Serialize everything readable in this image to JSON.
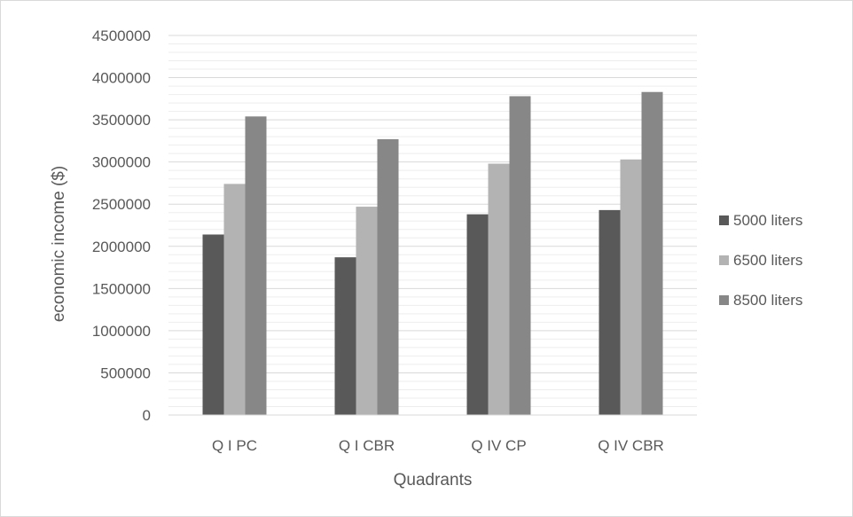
{
  "chart_data": {
    "type": "bar",
    "title": "",
    "xlabel": "Quadrants",
    "ylabel": "economic income ($)",
    "categories": [
      "Q I PC",
      "Q I CBR",
      "Q IV CP",
      "Q IV CBR"
    ],
    "series": [
      {
        "name": "5000 liters",
        "color": "#595959",
        "values": [
          2140000,
          1870000,
          2380000,
          2430000
        ]
      },
      {
        "name": "6500 liters",
        "color": "#b3b3b3",
        "values": [
          2740000,
          2470000,
          2980000,
          3030000
        ]
      },
      {
        "name": "8500 liters",
        "color": "#878787",
        "values": [
          3540000,
          3270000,
          3780000,
          3830000
        ]
      }
    ],
    "ylim": [
      0,
      4500000
    ],
    "yticks": [
      "0",
      "500000",
      "1000000",
      "1500000",
      "2000000",
      "2500000",
      "3000000",
      "3500000",
      "4000000",
      "4500000"
    ],
    "grid": true,
    "legend_position": "right"
  }
}
